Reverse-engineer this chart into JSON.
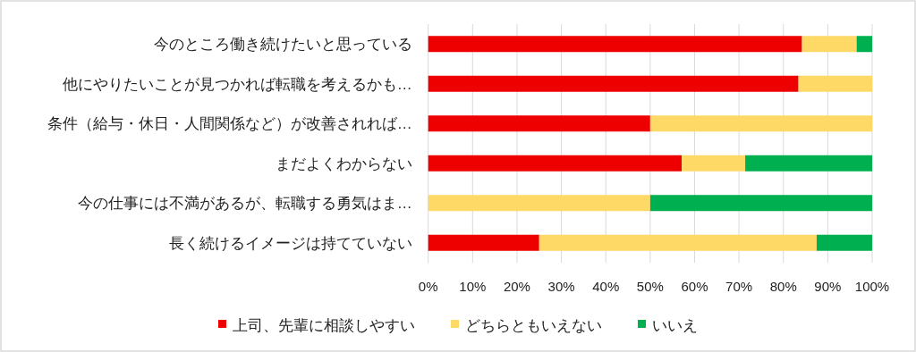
{
  "chart_data": {
    "type": "bar",
    "orientation": "horizontal",
    "stacked": true,
    "categories": [
      "今のところ働き続けたいと思っている",
      "他にやりたいことが見つかれば転職を考えるかも…",
      "条件（給与・休日・人間関係など）が改善されれば…",
      "まだよくわからない",
      "今の仕事には不満があるが、転職する勇気はま…",
      "長く続けるイメージは持てていない"
    ],
    "series": [
      {
        "name": "上司、先輩に相談しやすい",
        "color": "#ee0000",
        "values": [
          84.2,
          83.4,
          50,
          57.1,
          0,
          25
        ]
      },
      {
        "name": "どちらともいえない",
        "color": "#ffd966",
        "values": [
          12.3,
          16.6,
          50,
          14.3,
          50,
          62.5
        ]
      },
      {
        "name": "いいえ",
        "color": "#00b050",
        "values": [
          3.5,
          0,
          0,
          28.6,
          50,
          12.5
        ]
      }
    ],
    "xlim": [
      0,
      100
    ],
    "xticks": [
      {
        "value": 0,
        "label": "0%"
      },
      {
        "value": 10,
        "label": "10%"
      },
      {
        "value": 20,
        "label": "20%"
      },
      {
        "value": 30,
        "label": "30%"
      },
      {
        "value": 40,
        "label": "40%"
      },
      {
        "value": 50,
        "label": "50%"
      },
      {
        "value": 60,
        "label": "60%"
      },
      {
        "value": 70,
        "label": "70%"
      },
      {
        "value": 80,
        "label": "80%"
      },
      {
        "value": 90,
        "label": "90%"
      },
      {
        "value": 100,
        "label": "100%"
      }
    ],
    "grid": "x",
    "legend": "bottom"
  }
}
